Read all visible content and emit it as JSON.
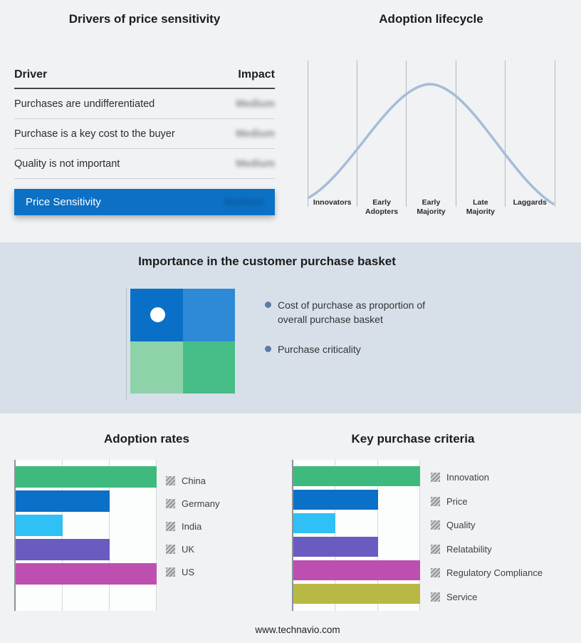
{
  "titles": {
    "drivers": "Drivers of price sensitivity",
    "lifecycle": "Adoption lifecycle",
    "basket": "Importance in the customer purchase basket"
  },
  "drivers_table": {
    "columns": {
      "driver": "Driver",
      "impact": "Impact"
    },
    "rows": [
      {
        "driver": "Purchases are undifferentiated",
        "impact": "Medium"
      },
      {
        "driver": "Purchase is a key cost to the buyer",
        "impact": "Medium"
      },
      {
        "driver": "Quality is not important",
        "impact": "Medium"
      }
    ],
    "summary": {
      "label": "Price Sensitivity",
      "impact": "Medium"
    },
    "accent_color": "#0c70c4"
  },
  "lifecycle": {
    "stages": [
      "Innovators",
      "Early Adopters",
      "Early Majority",
      "Late Majority",
      "Laggards"
    ],
    "curve_color": "#a6bcd8"
  },
  "basket": {
    "bullets": [
      "Cost of purchase as proportion of overall purchase basket",
      "Purchase criticality"
    ],
    "quadrant_colors": {
      "top_left": "#0a70c7",
      "top_right": "#2e8ad6",
      "bottom_left": "#8ed2a9",
      "bottom_right": "#47bd88"
    }
  },
  "chart_data": [
    {
      "type": "bar",
      "orientation": "horizontal",
      "title": "Adoption rates",
      "categories": [
        "China",
        "Germany",
        "India",
        "UK",
        "US"
      ],
      "values": [
        3,
        2,
        1,
        2,
        3
      ],
      "xlim": [
        0,
        3
      ],
      "grid": true,
      "legend_position": "right",
      "colors": [
        "#3fba7e",
        "#0b70c7",
        "#2fc0f5",
        "#6a5bc0",
        "#bd4fb0"
      ]
    },
    {
      "type": "bar",
      "orientation": "horizontal",
      "title": "Key purchase criteria",
      "categories": [
        "Innovation",
        "Price",
        "Quality",
        "Relatability",
        "Regulatory Compliance",
        "Service"
      ],
      "values": [
        3,
        2,
        1,
        2,
        3,
        3
      ],
      "xlim": [
        0,
        3
      ],
      "grid": true,
      "legend_position": "right",
      "colors": [
        "#3fba7e",
        "#0b70c7",
        "#2fc0f5",
        "#6a5bc0",
        "#bd4fb0",
        "#b8b944"
      ]
    }
  ],
  "footer": {
    "url": "www.technavio.com"
  }
}
